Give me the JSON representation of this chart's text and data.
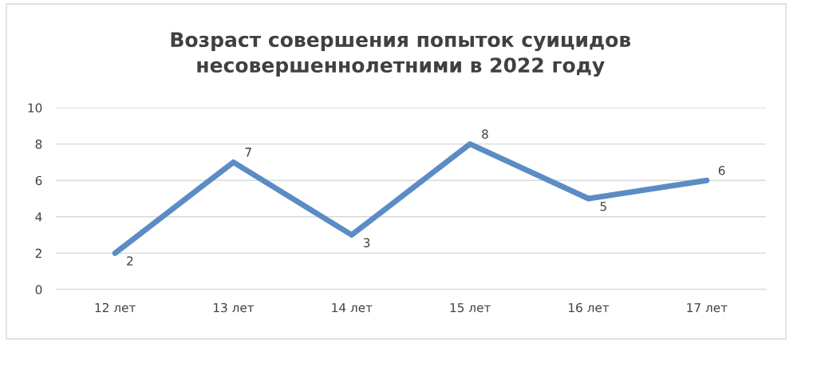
{
  "chart_data": {
    "type": "line",
    "title": "Возраст совершения попыток суицидов\nнесовершеннолетними в 2022 году",
    "categories": [
      "12 лет",
      "13 лет",
      "14 лет",
      "15 лет",
      "16 лет",
      "17 лет"
    ],
    "series": [
      {
        "color": "#5b8cc4",
        "values": [
          2,
          7,
          3,
          8,
          5,
          6
        ]
      }
    ],
    "ylim": [
      0,
      10
    ],
    "yticks": [
      0,
      2,
      4,
      6,
      8,
      10
    ],
    "grid": "y",
    "data_labels": true,
    "marker": "none",
    "line_style": "solid"
  }
}
